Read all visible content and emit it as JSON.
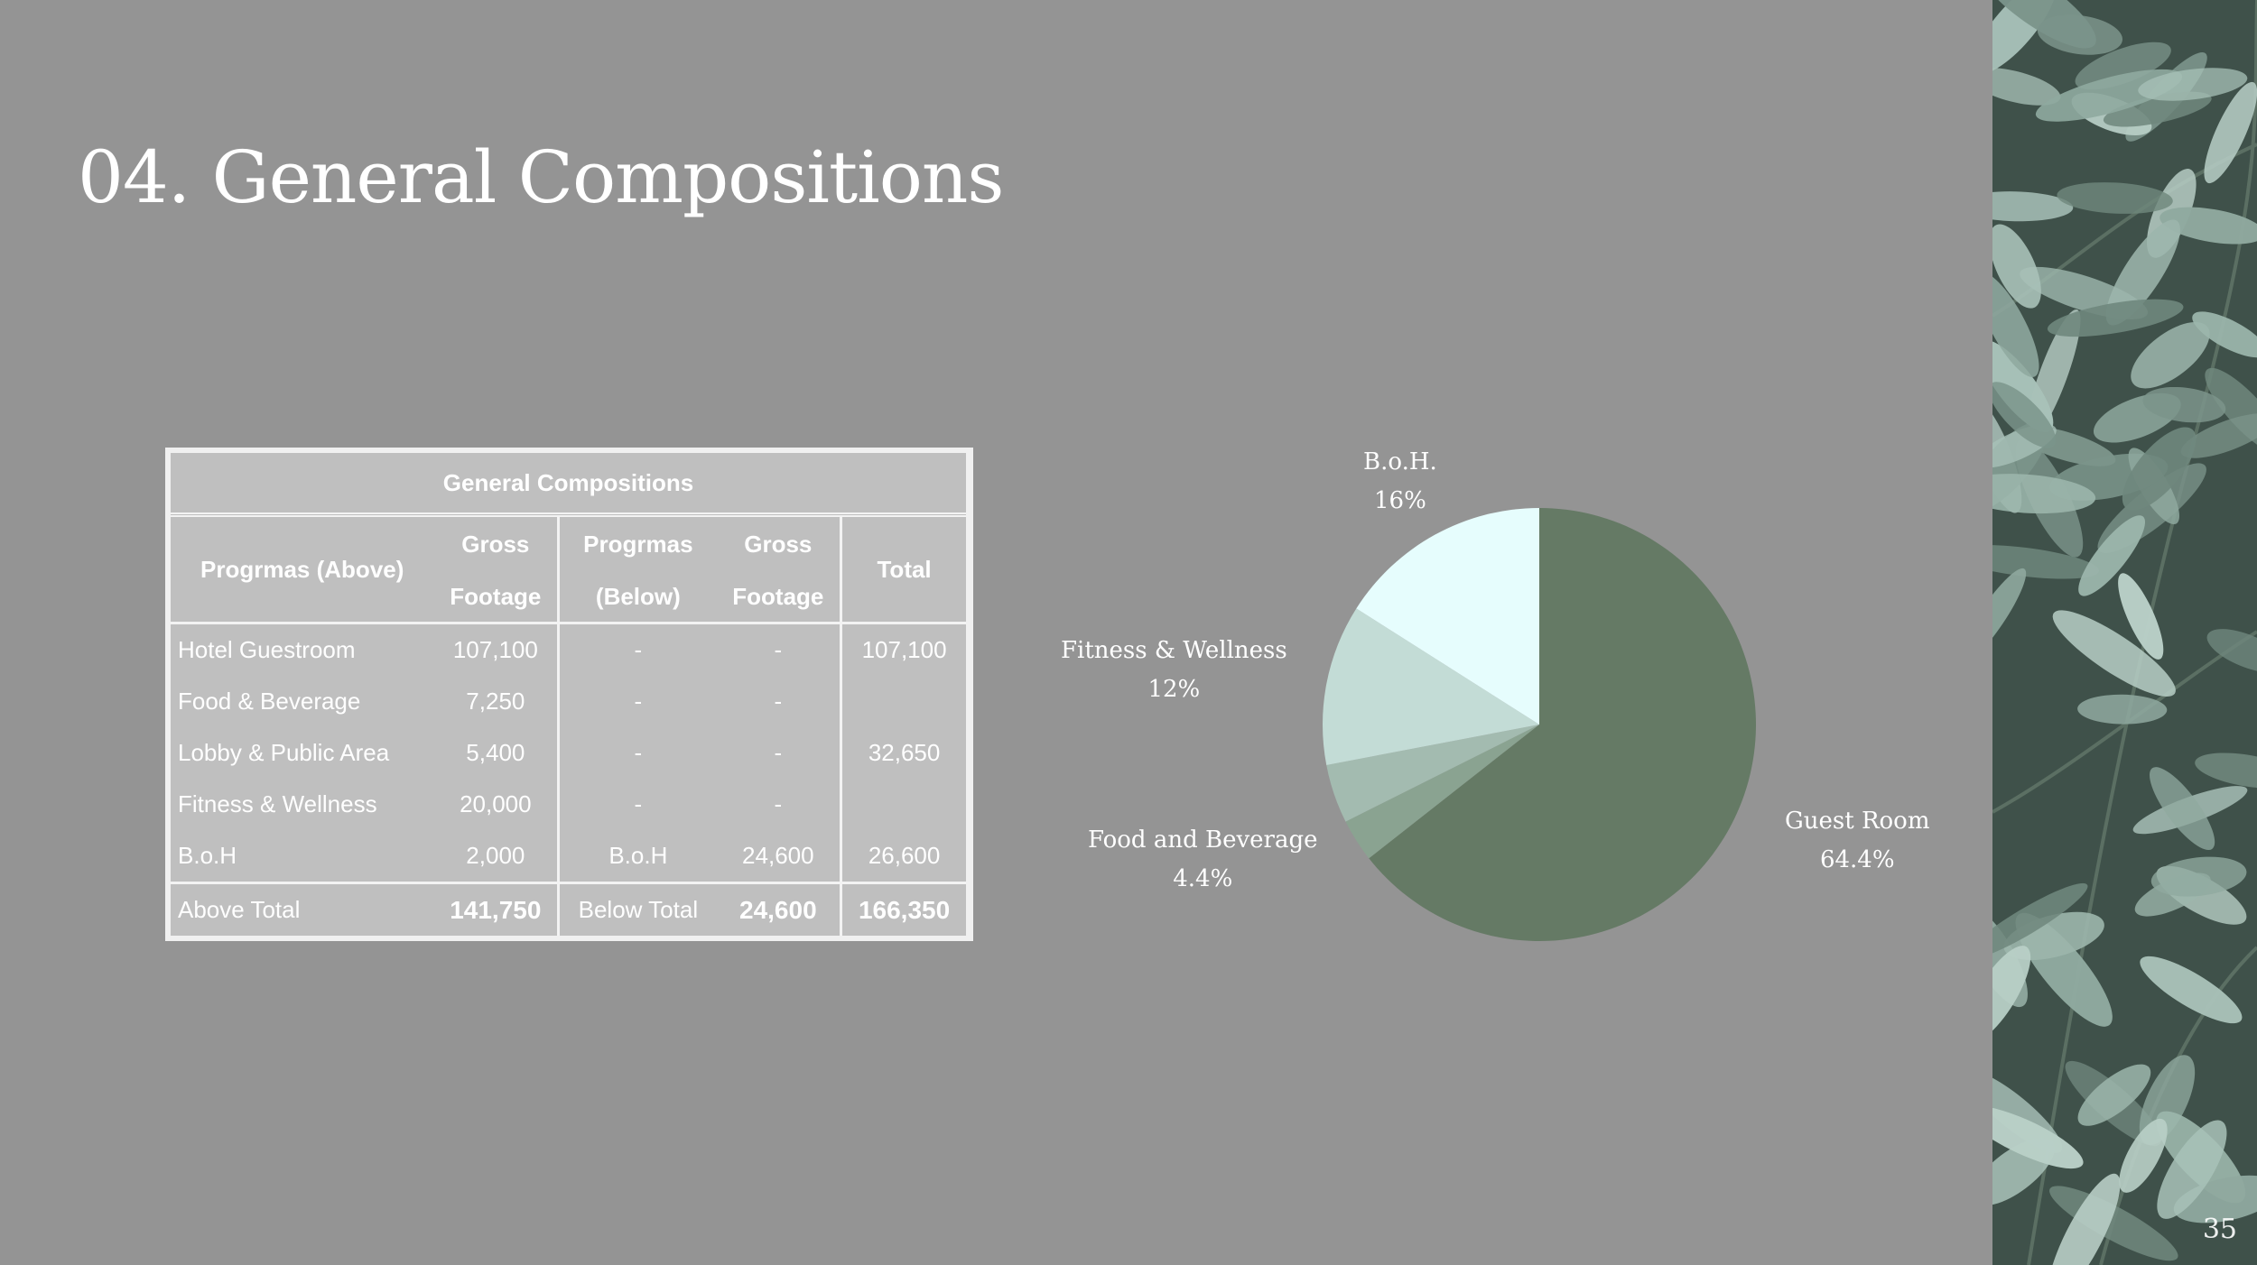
{
  "slide": {
    "title": "04. General Compositions",
    "page_number": "35"
  },
  "table": {
    "title": "General Compositions",
    "headers": {
      "programs_above": "Progrmas (Above)",
      "gross_above_1": "Gross",
      "gross_above_2": "Footage",
      "programs_below_1": "Progrmas",
      "programs_below_2": "(Below)",
      "gross_below_1": "Gross",
      "gross_below_2": "Footage",
      "total": "Total"
    },
    "rows": [
      {
        "program": "Hotel Guestroom",
        "gross": "107,100",
        "below": "-",
        "below_gross": "-",
        "total": "107,100"
      },
      {
        "program": "Food & Beverage",
        "gross": "7,250",
        "below": "-",
        "below_gross": "-",
        "total": ""
      },
      {
        "program": "Lobby & Public Area",
        "gross": "5,400",
        "below": "-",
        "below_gross": "-",
        "total": "32,650"
      },
      {
        "program": "Fitness & Wellness",
        "gross": "20,000",
        "below": "-",
        "below_gross": "-",
        "total": ""
      },
      {
        "program": "B.o.H",
        "gross": "2,000",
        "below": "B.o.H",
        "below_gross": "24,600",
        "total": "26,600"
      }
    ],
    "totals": {
      "above_label": "Above Total",
      "above_value": "141,750",
      "below_label": "Below Total",
      "below_value": "24,600",
      "grand_total": "166,350"
    }
  },
  "chart_data": {
    "type": "pie",
    "start_angle_deg": 90,
    "direction": "clockwise",
    "slices": [
      {
        "name": "Guest Room",
        "label": "64.4%",
        "value": 64.4,
        "color": "#657a65"
      },
      {
        "name": "Lobby & Public Area",
        "label": "",
        "value": 3.2,
        "color": "#8aa391"
      },
      {
        "name": "Food and Beverage",
        "label": "4.4%",
        "value": 4.4,
        "color": "#a3bbb0"
      },
      {
        "name": "Fitness & Wellness",
        "label": "12%",
        "value": 12,
        "color": "#c3dcd6"
      },
      {
        "name": "B.o.H.",
        "label": "16%",
        "value": 16,
        "color": "#e6fdfd"
      }
    ]
  },
  "colors": {
    "background": "#949494",
    "table_bg": "#bfbfbf",
    "text": "#ffffff"
  }
}
